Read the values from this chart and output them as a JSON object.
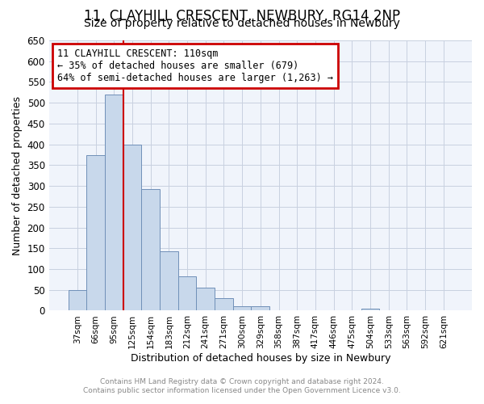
{
  "title": "11, CLAYHILL CRESCENT, NEWBURY, RG14 2NP",
  "subtitle": "Size of property relative to detached houses in Newbury",
  "xlabel": "Distribution of detached houses by size in Newbury",
  "ylabel": "Number of detached properties",
  "bar_labels": [
    "37sqm",
    "66sqm",
    "95sqm",
    "125sqm",
    "154sqm",
    "183sqm",
    "212sqm",
    "241sqm",
    "271sqm",
    "300sqm",
    "329sqm",
    "358sqm",
    "387sqm",
    "417sqm",
    "446sqm",
    "475sqm",
    "504sqm",
    "533sqm",
    "563sqm",
    "592sqm",
    "621sqm"
  ],
  "bar_values": [
    50,
    375,
    520,
    400,
    292,
    142,
    82,
    55,
    30,
    10,
    10,
    0,
    0,
    0,
    0,
    0,
    5,
    0,
    0,
    0,
    0
  ],
  "bar_color": "#c8d8eb",
  "bar_edge_color": "#7090b8",
  "background_color": "#ffffff",
  "plot_bg_color": "#f0f4fb",
  "grid_color": "#c8d0e0",
  "vline_color": "#cc0000",
  "vline_x_idx": 2,
  "annotation_title": "11 CLAYHILL CRESCENT: 110sqm",
  "annotation_line1": "← 35% of detached houses are smaller (679)",
  "annotation_line2": "64% of semi-detached houses are larger (1,263) →",
  "annotation_box_color": "white",
  "annotation_box_edge_color": "#cc0000",
  "ylim": [
    0,
    650
  ],
  "yticks": [
    0,
    50,
    100,
    150,
    200,
    250,
    300,
    350,
    400,
    450,
    500,
    550,
    600,
    650
  ],
  "footer1": "Contains HM Land Registry data © Crown copyright and database right 2024.",
  "footer2": "Contains public sector information licensed under the Open Government Licence v3.0.",
  "title_fontsize": 12,
  "subtitle_fontsize": 10,
  "footer_color": "#888888"
}
